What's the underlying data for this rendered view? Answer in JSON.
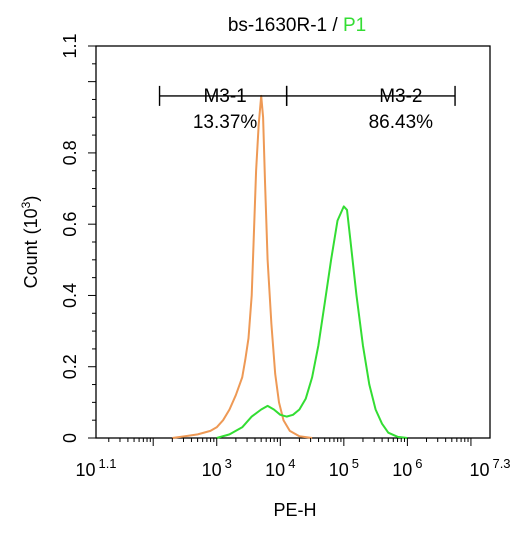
{
  "chart_data": {
    "type": "histogram",
    "title": {
      "sample": "bs-1630R-1",
      "separator": " / ",
      "gate": "P1",
      "gate_color": "#33dd33"
    },
    "xlabel": "PE-H",
    "ylabel": "Count",
    "ylabel_unit_base": "(10",
    "ylabel_unit_exp": "3",
    "ylabel_unit_close": ")",
    "x_scale": "log10",
    "xlim_log10": [
      1.1,
      7.3
    ],
    "ylim": [
      0,
      1.1
    ],
    "x_ticks": [
      {
        "log10": 1.1,
        "base": "10",
        "exp": "1.1"
      },
      {
        "log10": 3,
        "base": "10",
        "exp": "3"
      },
      {
        "log10": 4,
        "base": "10",
        "exp": "4"
      },
      {
        "log10": 5,
        "base": "10",
        "exp": "5"
      },
      {
        "log10": 6,
        "base": "10",
        "exp": "6"
      },
      {
        "log10": 7.3,
        "base": "10",
        "exp": "7.3"
      }
    ],
    "y_ticks": [
      {
        "value": 0,
        "label": "0"
      },
      {
        "value": 0.2,
        "label": "0.2"
      },
      {
        "value": 0.4,
        "label": "0.4"
      },
      {
        "value": 0.6,
        "label": "0.6"
      },
      {
        "value": 0.8,
        "label": "0.8"
      },
      {
        "value": 1.1,
        "label": "1.1"
      }
    ],
    "series": [
      {
        "color": "#ee9955",
        "points": [
          [
            2.3,
            0
          ],
          [
            2.5,
            0.005
          ],
          [
            2.7,
            0.01
          ],
          [
            2.9,
            0.02
          ],
          [
            3.0,
            0.03
          ],
          [
            3.1,
            0.05
          ],
          [
            3.2,
            0.08
          ],
          [
            3.3,
            0.12
          ],
          [
            3.4,
            0.17
          ],
          [
            3.45,
            0.22
          ],
          [
            3.5,
            0.28
          ],
          [
            3.55,
            0.4
          ],
          [
            3.58,
            0.55
          ],
          [
            3.62,
            0.75
          ],
          [
            3.66,
            0.88
          ],
          [
            3.7,
            0.96
          ],
          [
            3.73,
            0.9
          ],
          [
            3.76,
            0.72
          ],
          [
            3.8,
            0.5
          ],
          [
            3.86,
            0.32
          ],
          [
            3.92,
            0.18
          ],
          [
            3.98,
            0.1
          ],
          [
            4.05,
            0.05
          ],
          [
            4.15,
            0.02
          ],
          [
            4.3,
            0.005
          ],
          [
            4.5,
            0
          ]
        ]
      },
      {
        "color": "#33dd33",
        "points": [
          [
            3.0,
            0
          ],
          [
            3.2,
            0.01
          ],
          [
            3.4,
            0.03
          ],
          [
            3.55,
            0.06
          ],
          [
            3.7,
            0.08
          ],
          [
            3.8,
            0.09
          ],
          [
            3.9,
            0.08
          ],
          [
            4.0,
            0.065
          ],
          [
            4.1,
            0.06
          ],
          [
            4.2,
            0.065
          ],
          [
            4.3,
            0.08
          ],
          [
            4.4,
            0.11
          ],
          [
            4.5,
            0.17
          ],
          [
            4.6,
            0.26
          ],
          [
            4.7,
            0.38
          ],
          [
            4.8,
            0.5
          ],
          [
            4.9,
            0.61
          ],
          [
            5.0,
            0.65
          ],
          [
            5.05,
            0.64
          ],
          [
            5.1,
            0.56
          ],
          [
            5.2,
            0.4
          ],
          [
            5.3,
            0.26
          ],
          [
            5.4,
            0.15
          ],
          [
            5.5,
            0.08
          ],
          [
            5.6,
            0.04
          ],
          [
            5.7,
            0.015
          ],
          [
            5.85,
            0.003
          ],
          [
            6.0,
            0
          ]
        ]
      }
    ],
    "gates": [
      {
        "name": "M3-1",
        "percent": "13.37%",
        "from_log10": 2.1,
        "to_log10": 4.1,
        "y": 0.96
      },
      {
        "name": "M3-2",
        "percent": "86.43%",
        "from_log10": 4.1,
        "to_log10": 6.75,
        "y": 0.96
      }
    ]
  }
}
